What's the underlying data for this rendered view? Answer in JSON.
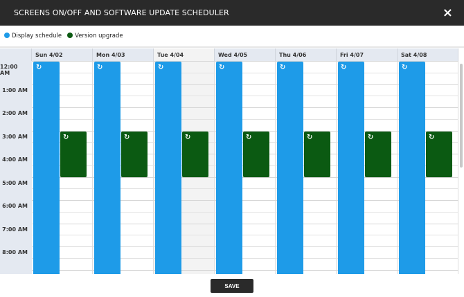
{
  "title": "SCREENS ON/OFF AND SOFTWARE UPDATE SCHEDULER",
  "close_icon": "×",
  "legend": [
    {
      "label": "Display schedule",
      "color": "#1e9be8"
    },
    {
      "label": "Version upgrade",
      "color": "#0b5a12"
    }
  ],
  "days": [
    "Sun 4/02",
    "Mon 4/03",
    "Tue 4/04",
    "Wed 4/05",
    "Thu 4/06",
    "Fri 4/07",
    "Sat 4/08"
  ],
  "today_index": 2,
  "times": [
    "12:00 AM",
    "1:00 AM",
    "2:00 AM",
    "3:00 AM",
    "4:00 AM",
    "5:00 AM",
    "6:00 AM",
    "7:00 AM",
    "8:00 AM"
  ],
  "events": {
    "display": {
      "start_hour": 0,
      "end_hour": 24,
      "color": "#1e9be8"
    },
    "upgrade": {
      "start_hour": 3,
      "end_hour": 5,
      "color": "#0b5a12"
    },
    "icon": "↻"
  },
  "save_label": "SAVE"
}
